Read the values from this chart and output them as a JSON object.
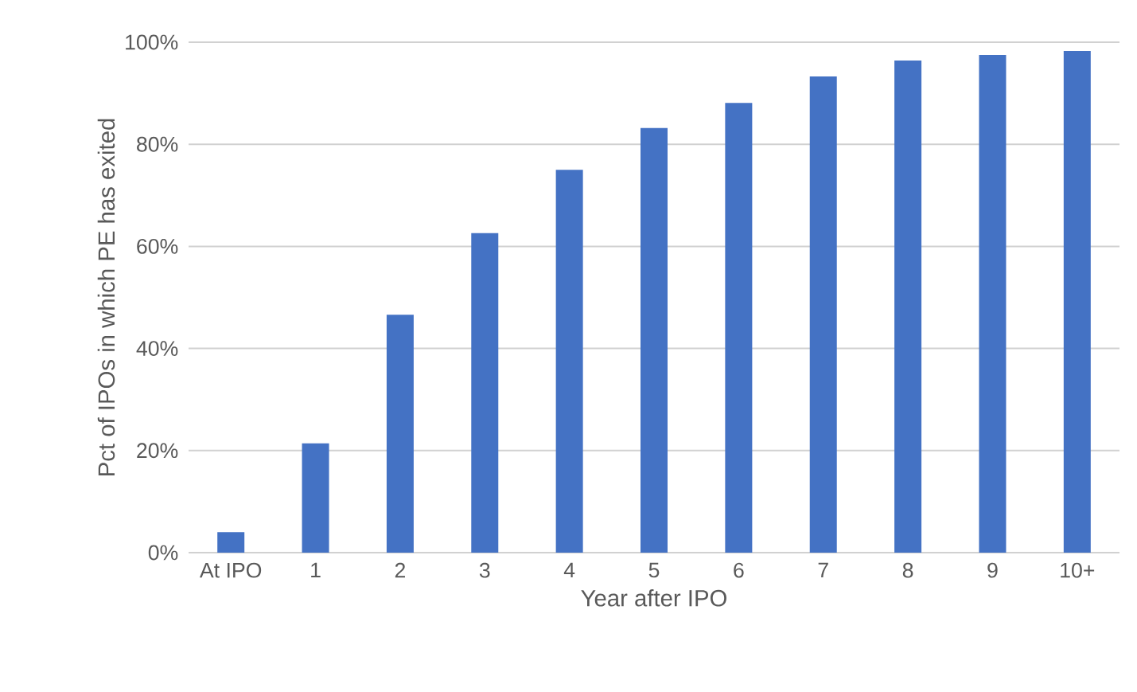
{
  "chart_data": {
    "type": "bar",
    "xlabel": "Year after IPO",
    "ylabel": "Pct of IPOs in which PE has exited",
    "categories": [
      "At IPO",
      "1",
      "2",
      "3",
      "4",
      "5",
      "6",
      "7",
      "8",
      "9",
      "10+"
    ],
    "values": [
      4,
      21.4,
      46.6,
      62.6,
      75.0,
      83.2,
      88.1,
      93.3,
      96.4,
      97.5,
      98.3
    ],
    "color": "#4472c4",
    "ylim": [
      0,
      100
    ],
    "yticks": [
      {
        "value": 0,
        "label": "0%"
      },
      {
        "value": 20,
        "label": "20%"
      },
      {
        "value": 40,
        "label": "40%"
      },
      {
        "value": 60,
        "label": "60%"
      },
      {
        "value": 80,
        "label": "80%"
      },
      {
        "value": 100,
        "label": "100%"
      }
    ],
    "grid": "y"
  }
}
